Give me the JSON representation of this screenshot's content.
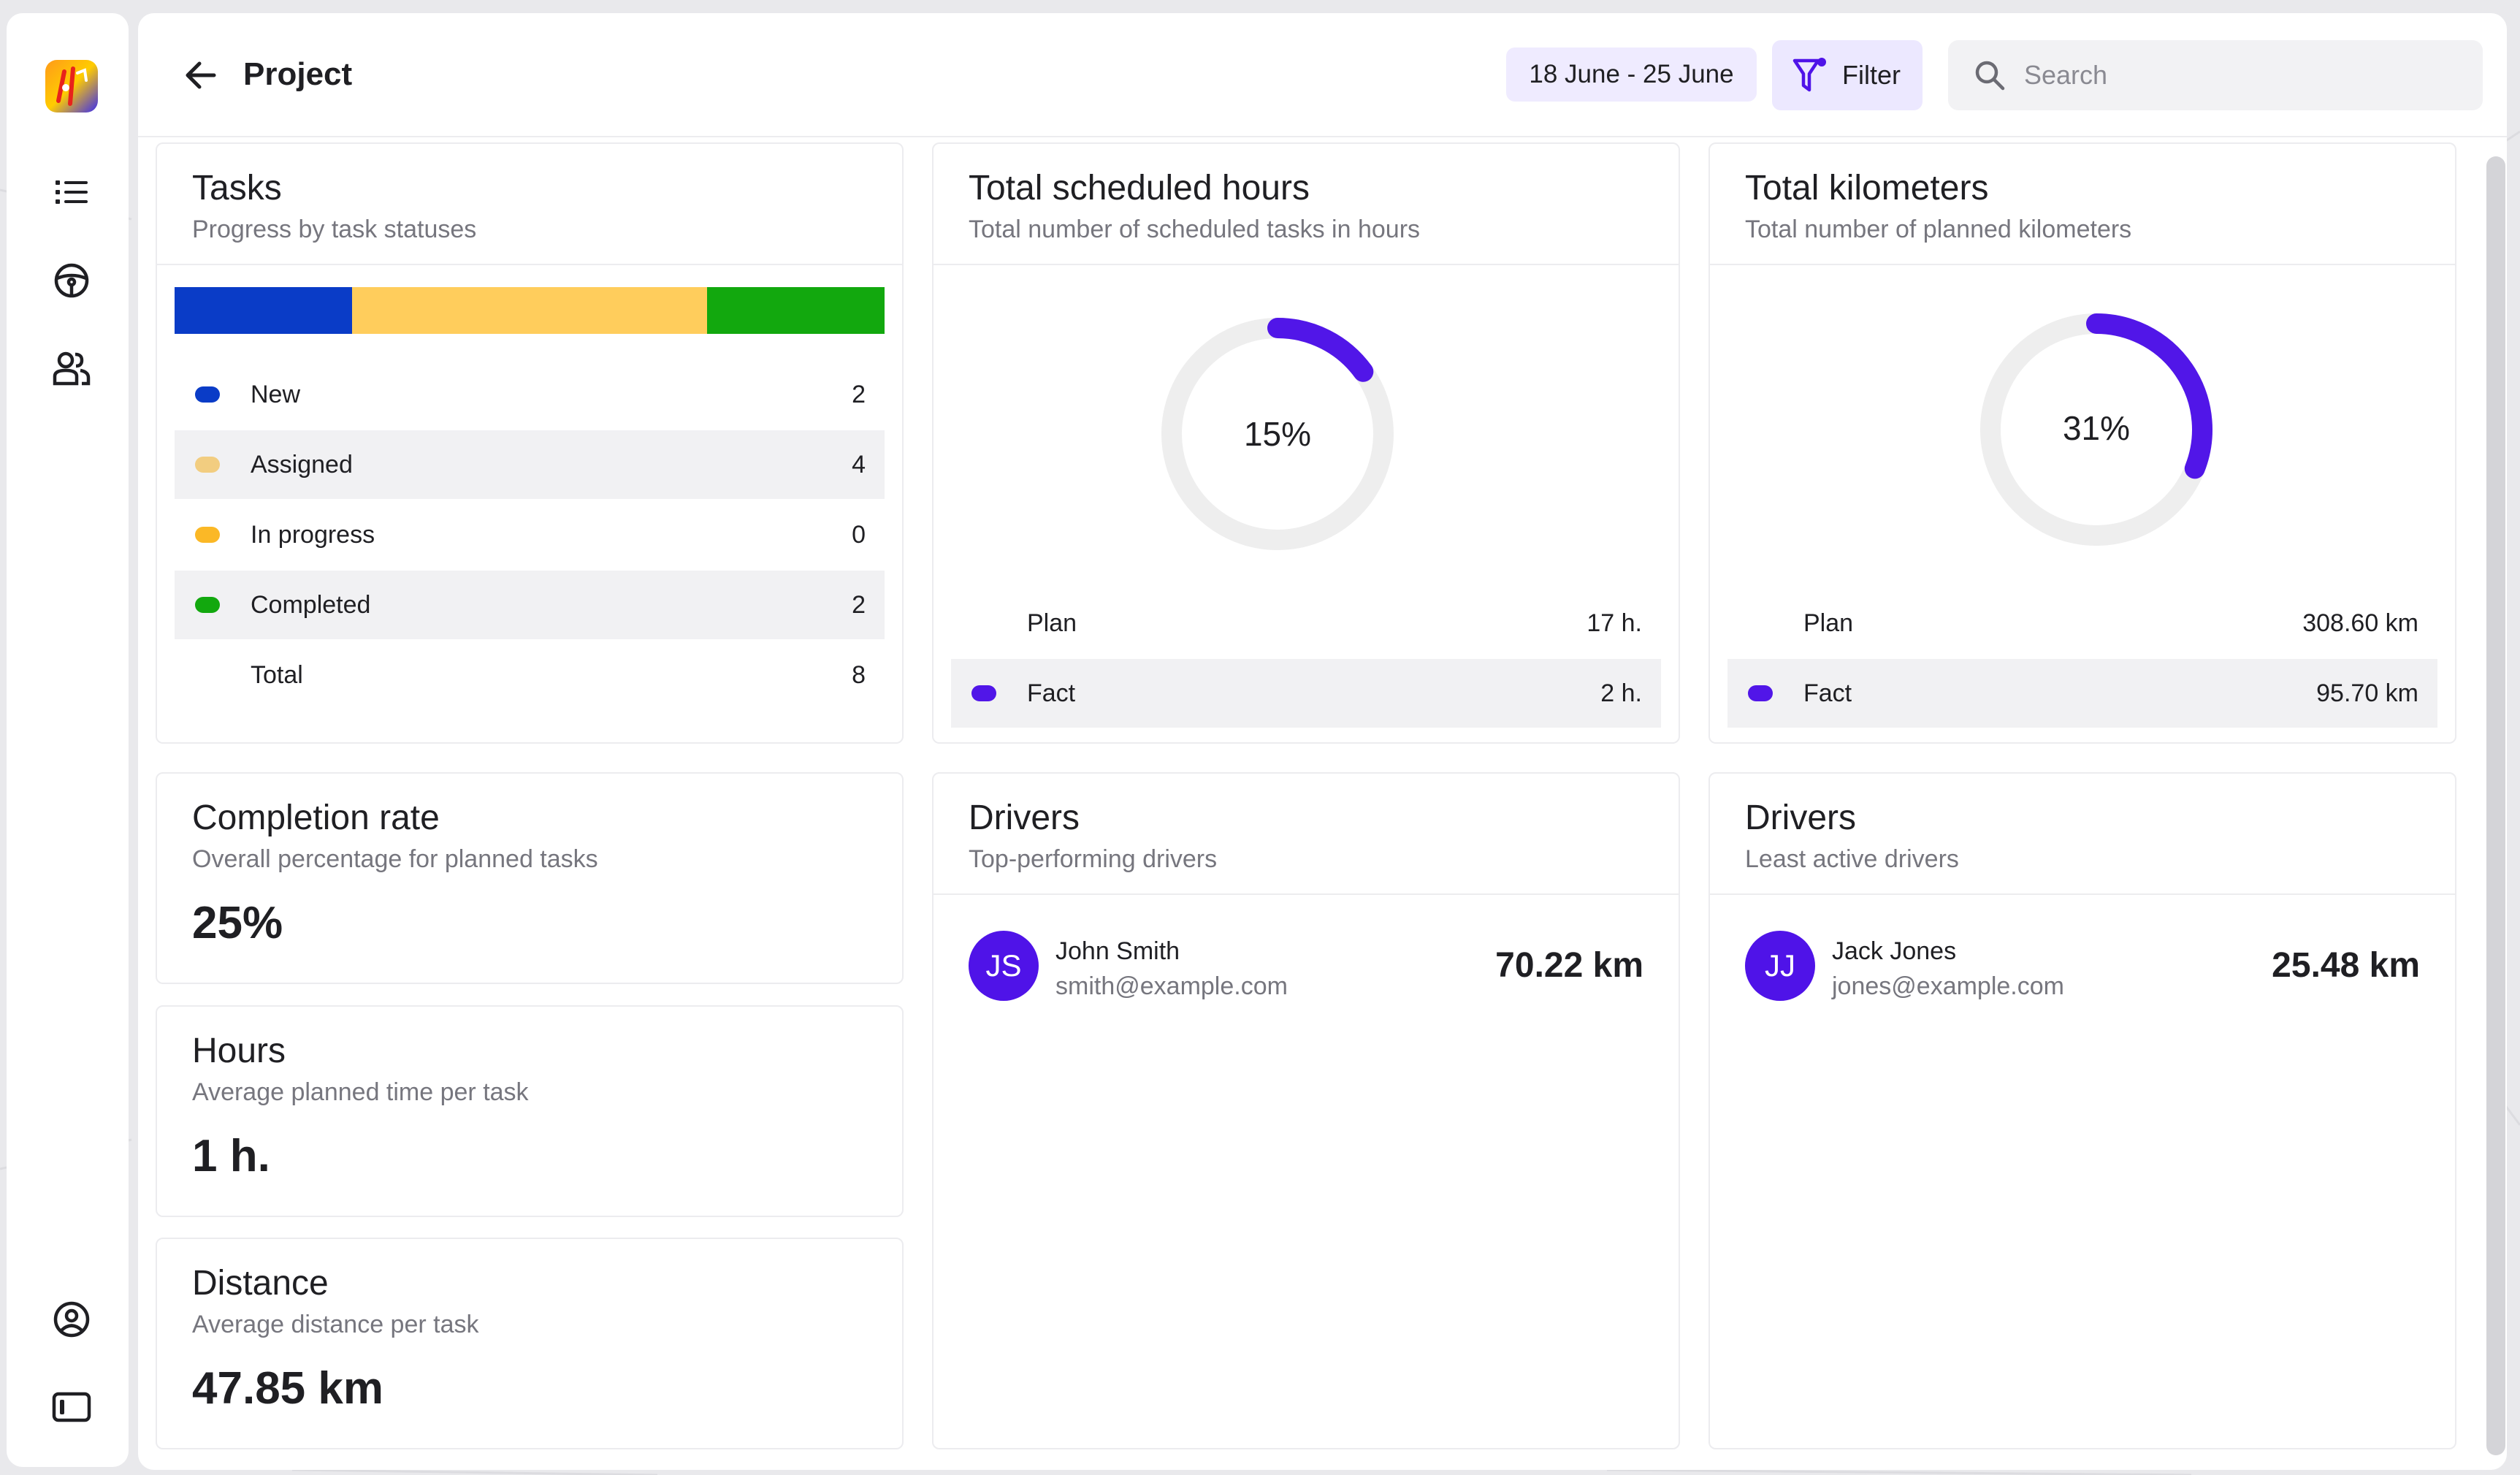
{
  "header": {
    "title": "Project",
    "date_range": "18 June - 25 June",
    "filter_label": "Filter",
    "search_placeholder": "Search"
  },
  "sidebar": {
    "items": [
      {
        "icon": "list-icon"
      },
      {
        "icon": "steering-wheel-icon"
      },
      {
        "icon": "users-icon"
      }
    ],
    "bottom": [
      {
        "icon": "user-circle-icon"
      },
      {
        "icon": "sidebar-toggle-icon"
      }
    ]
  },
  "tasks": {
    "title": "Tasks",
    "subtitle": "Progress by task statuses",
    "progress": [
      {
        "status": "New",
        "fraction": 0.25,
        "color": "#0a3cc7"
      },
      {
        "status": "Assigned",
        "fraction": 0.5,
        "color": "#ffcd5c"
      },
      {
        "status": "Completed",
        "fraction": 0.25,
        "color": "#12a80e"
      }
    ],
    "rows": [
      {
        "label": "New",
        "value": "2",
        "color": "#0a3cc7"
      },
      {
        "label": "Assigned",
        "value": "4",
        "color": "#f2cd80"
      },
      {
        "label": "In progress",
        "value": "0",
        "color": "#fbb826"
      },
      {
        "label": "Completed",
        "value": "2",
        "color": "#12a80e"
      },
      {
        "label": "Total",
        "value": "8"
      }
    ]
  },
  "scheduled_hours": {
    "title": "Total scheduled hours",
    "subtitle": "Total number of scheduled tasks in hours",
    "percent_label": "15%",
    "percent": 0.15,
    "plan_label": "Plan",
    "plan_value": "17 h.",
    "fact_label": "Fact",
    "fact_value": "2 h.",
    "color": "#5116e8"
  },
  "kilometers": {
    "title": "Total kilometers",
    "subtitle": "Total number of planned kilometers",
    "percent_label": "31%",
    "percent": 0.31,
    "plan_label": "Plan",
    "plan_value": "308.60 km",
    "fact_label": "Fact",
    "fact_value": "95.70 km",
    "color": "#5116e8"
  },
  "completion": {
    "title": "Completion rate",
    "subtitle": "Overall percentage for planned tasks",
    "value": "25%"
  },
  "hours": {
    "title": "Hours",
    "subtitle": "Average planned time per task",
    "value": "1 h."
  },
  "distance": {
    "title": "Distance",
    "subtitle": "Average distance per task",
    "value": "47.85 km"
  },
  "top_drivers": {
    "title": "Drivers",
    "subtitle": "Top-performing drivers",
    "driver": {
      "initials": "JS",
      "name": "John Smith",
      "email": "smith@example.com",
      "distance": "70.22 km"
    }
  },
  "least_drivers": {
    "title": "Drivers",
    "subtitle": "Least active drivers",
    "driver": {
      "initials": "JJ",
      "name": "Jack Jones",
      "email": "jones@example.com",
      "distance": "25.48 km"
    }
  }
}
